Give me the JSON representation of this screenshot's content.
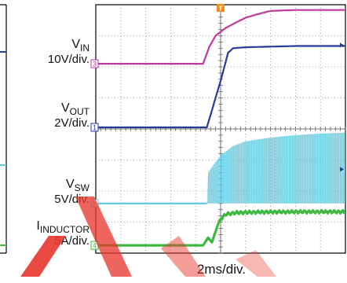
{
  "chart_data": {
    "type": "line",
    "title": "",
    "xlabel": "2ms/div.",
    "x_divisions": 10,
    "y_divisions": 8,
    "grid": true,
    "trigger_marker": "T",
    "colors": {
      "vin": "#c0389c",
      "vout": "#2a3a9a",
      "vsw": "#5bc8dc",
      "iind": "#3fb83f",
      "grid": "#888888",
      "frame": "#000000",
      "watermark": "#e8362d"
    },
    "series": [
      {
        "key": "vin",
        "channel": "3",
        "name": "VIN",
        "name_main": "V",
        "name_sub": "IN",
        "scale": "10V/div.",
        "ground_div": 6.1,
        "x_div": [
          0,
          4.3,
          4.55,
          4.8,
          5.2,
          5.6,
          6.0,
          6.5,
          7.0,
          8.0,
          10
        ],
        "y_div": [
          0,
          0,
          0.55,
          0.9,
          1.15,
          1.32,
          1.48,
          1.6,
          1.7,
          1.73,
          1.73
        ]
      },
      {
        "key": "vout",
        "channel": "1",
        "name": "VOUT",
        "name_main": "V",
        "name_sub": "OUT",
        "scale": "2V/div.",
        "ground_div": 4.05,
        "x_div": [
          0,
          4.45,
          5.0,
          5.3,
          5.5,
          6.0,
          7.0,
          8.0,
          10
        ],
        "y_div": [
          0,
          0,
          1.5,
          2.4,
          2.55,
          2.58,
          2.6,
          2.62,
          2.62
        ]
      },
      {
        "key": "vsw",
        "channel": "2",
        "name": "VSW",
        "name_main": "V",
        "name_sub": "SW",
        "scale": "5V/div.",
        "ground_div": 1.6,
        "x_div": [
          0,
          4.45,
          4.5,
          5.0,
          5.5,
          6.0,
          7.0,
          8.0,
          9.0,
          10
        ],
        "y_div": [
          0,
          0,
          1.0,
          1.55,
          1.85,
          2.0,
          2.12,
          2.2,
          2.25,
          2.28
        ],
        "fill_to_ground_from_x_div": 4.45
      },
      {
        "key": "iind",
        "channel": "4",
        "name": "IINDUCTOR",
        "name_main": "I",
        "name_sub": "INDUCTOR",
        "scale": "5A/div.",
        "ground_div": 0.25,
        "x_div": [
          0,
          4.3,
          4.5,
          4.65,
          4.8,
          4.95,
          5.2,
          5.6,
          6.5,
          8.0,
          10
        ],
        "y_div": [
          0,
          0,
          0.25,
          0.1,
          0.45,
          0.8,
          1.0,
          1.05,
          1.07,
          1.08,
          1.08
        ]
      }
    ]
  }
}
